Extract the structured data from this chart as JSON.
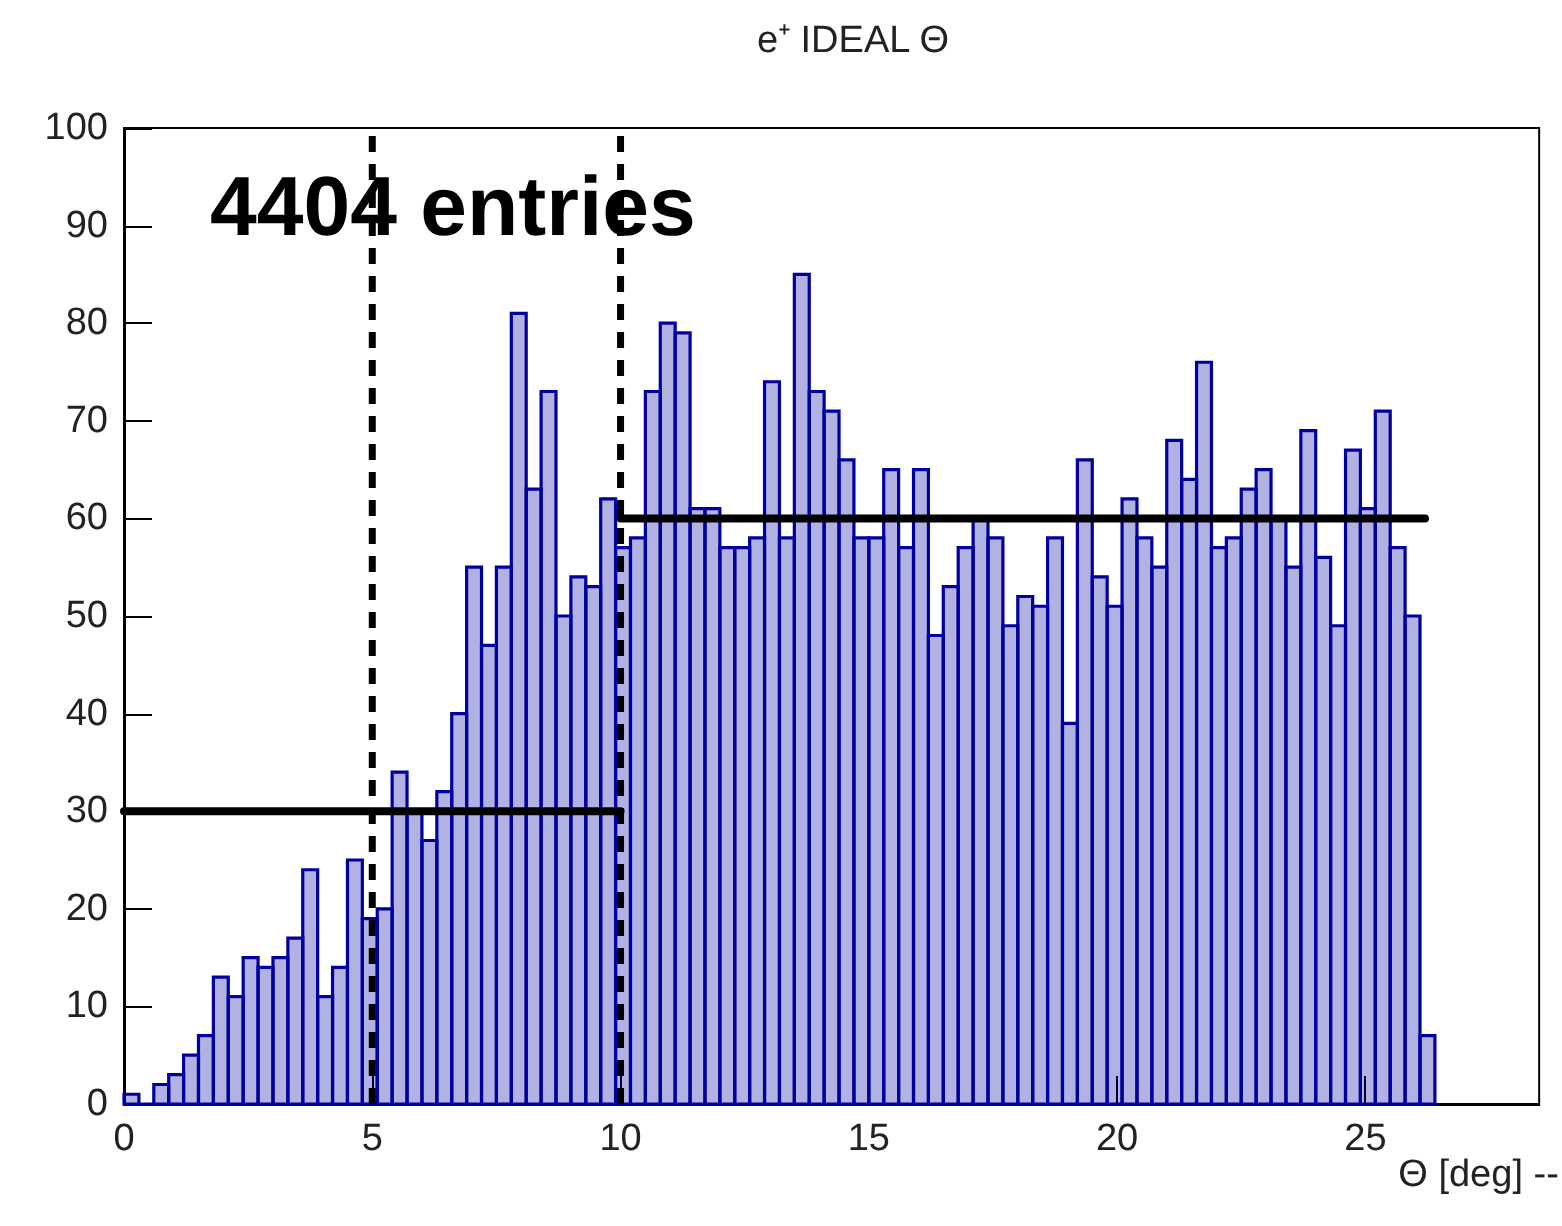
{
  "chart_data": {
    "type": "histogram",
    "title": "e⁺ IDEAL Θ",
    "xlabel": "Θ [deg] --",
    "annotations": [
      "4404 entries"
    ],
    "xlim": [
      0,
      28.5
    ],
    "xticks": [
      0,
      5,
      10,
      15,
      20,
      25
    ],
    "ylim": [
      0,
      100
    ],
    "yticks": [
      0,
      10,
      20,
      30,
      40,
      50,
      60,
      70,
      80,
      90,
      100
    ],
    "ref_lines": [
      {
        "axis": "x",
        "value": 5,
        "line_style": "dashed",
        "color": "#000000"
      },
      {
        "axis": "x",
        "value": 10,
        "line_style": "dashed",
        "color": "#000000"
      }
    ],
    "series": [
      {
        "color": "#0000a0",
        "bins": [
          0,
          0.3,
          0.6,
          0.9,
          1.2,
          1.5,
          1.8,
          2.1,
          2.4,
          2.7,
          3,
          3.3,
          3.6,
          3.9,
          4.2,
          4.5,
          4.8,
          5.1,
          5.4,
          5.7,
          6,
          6.3,
          6.6,
          6.9,
          7.2,
          7.5,
          7.8,
          8.1,
          8.4,
          8.7,
          9,
          9.3,
          9.6,
          9.9,
          10.2,
          10.5,
          10.8,
          11.1,
          11.4,
          11.7,
          12,
          12.3,
          12.6,
          12.9,
          13.2,
          13.5,
          13.8,
          14.1,
          14.4,
          14.7,
          15,
          15.3,
          15.6,
          15.9,
          16.2,
          16.5,
          16.8,
          17.1,
          17.4,
          17.7,
          18,
          18.3,
          18.6,
          18.9,
          19.2,
          19.5,
          19.8,
          20.1,
          20.4,
          20.7,
          21,
          21.3,
          21.6,
          21.9,
          22.2,
          22.5,
          22.8,
          23.1,
          23.4,
          23.7,
          24,
          24.3,
          24.6,
          24.9,
          25.2,
          25.5,
          25.8,
          26.1,
          26.4
        ],
        "values": [
          1,
          0,
          2,
          3,
          5,
          7,
          13,
          11,
          15,
          14,
          15,
          17,
          24,
          11,
          14,
          25,
          19,
          20,
          34,
          30,
          27,
          32,
          40,
          55,
          47,
          55,
          81,
          63,
          73,
          50,
          54,
          53,
          62,
          57,
          58,
          73,
          80,
          79,
          61,
          61,
          57,
          57,
          58,
          74,
          58,
          85,
          73,
          71,
          66,
          58,
          58,
          65,
          57,
          65,
          48,
          53,
          57,
          60,
          58,
          49,
          52,
          51,
          58,
          39,
          66,
          54,
          51,
          62,
          58,
          55,
          68,
          64,
          76,
          57,
          58,
          63,
          65,
          60,
          55,
          69,
          56,
          49,
          67,
          61,
          71,
          57,
          50,
          7
        ]
      },
      {
        "type": "line",
        "color": "#000000",
        "x": [
          0,
          10
        ],
        "values": [
          30,
          30
        ]
      },
      {
        "type": "line",
        "color": "#000000",
        "x": [
          10,
          26.2
        ],
        "values": [
          60,
          60
        ]
      }
    ]
  }
}
